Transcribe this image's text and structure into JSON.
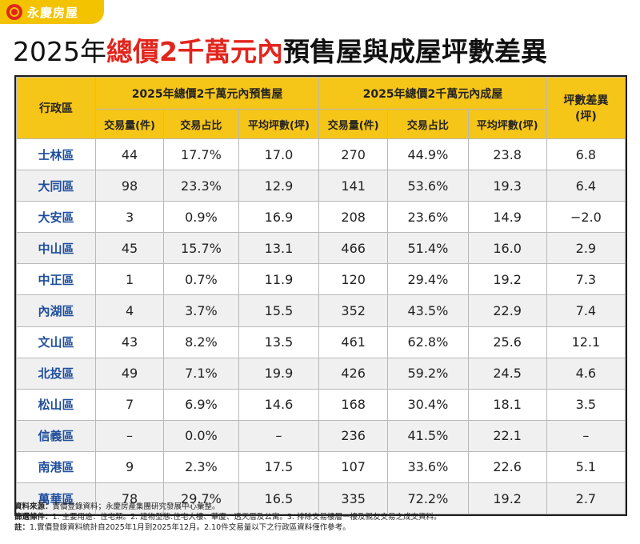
{
  "brand": {
    "name": "永慶房屋"
  },
  "title": {
    "prefix": "2025年",
    "highlight": "總價2千萬元內",
    "suffix": "預售屋與成屋坪數差異"
  },
  "table": {
    "district_header": "行政區",
    "group_presale": "2025年總價2千萬元內預售屋",
    "group_existing": "2025年總價2千萬元內成屋",
    "diff_header": "坪數差異\n(坪)",
    "sub_headers": [
      "交易量(件)",
      "交易占比",
      "平均坪數(坪)",
      "交易量(件)",
      "交易占比",
      "平均坪數(坪)"
    ],
    "rows": [
      [
        "士林區",
        "44",
        "17.7%",
        "17.0",
        "270",
        "44.9%",
        "23.8",
        "6.8"
      ],
      [
        "大同區",
        "98",
        "23.3%",
        "12.9",
        "141",
        "53.6%",
        "19.3",
        "6.4"
      ],
      [
        "大安區",
        "3",
        "0.9%",
        "16.9",
        "208",
        "23.6%",
        "14.9",
        "−2.0"
      ],
      [
        "中山區",
        "45",
        "15.7%",
        "13.1",
        "466",
        "51.4%",
        "16.0",
        "2.9"
      ],
      [
        "中正區",
        "1",
        "0.7%",
        "11.9",
        "120",
        "29.4%",
        "19.2",
        "7.3"
      ],
      [
        "內湖區",
        "4",
        "3.7%",
        "15.5",
        "352",
        "43.5%",
        "22.9",
        "7.4"
      ],
      [
        "文山區",
        "43",
        "8.2%",
        "13.5",
        "461",
        "62.8%",
        "25.6",
        "12.1"
      ],
      [
        "北投區",
        "49",
        "7.1%",
        "19.9",
        "426",
        "59.2%",
        "24.5",
        "4.6"
      ],
      [
        "松山區",
        "7",
        "6.9%",
        "14.6",
        "168",
        "30.4%",
        "18.1",
        "3.5"
      ],
      [
        "信義區",
        "–",
        "0.0%",
        "–",
        "236",
        "41.5%",
        "22.1",
        "–"
      ],
      [
        "南港區",
        "9",
        "2.3%",
        "17.5",
        "107",
        "33.6%",
        "22.6",
        "5.1"
      ],
      [
        "萬華區",
        "78",
        "29.7%",
        "16.5",
        "335",
        "72.2%",
        "19.2",
        "2.7"
      ]
    ]
  },
  "footnotes": [
    {
      "label": "資料來源：",
      "text": "實價登錄資料；永慶房產集團研究發展中心彙整。"
    },
    {
      "label": "篩選條件：",
      "text": "1. 主要用途：住宅類。2. 建物型態:住宅大樓、華廈、透天厝及公寓。3. 排除交易樓層一樓及親友交易之成交資料。"
    },
    {
      "label": "註：",
      "text": "1.實價登錄資料統計自2025年1月到2025年12月。2.10件交易量以下之行政區資料僅作參考。"
    }
  ],
  "colors": {
    "header_bg": "#f5c518",
    "accent_red": "#e2251c",
    "district_text": "#1f4e9c"
  }
}
